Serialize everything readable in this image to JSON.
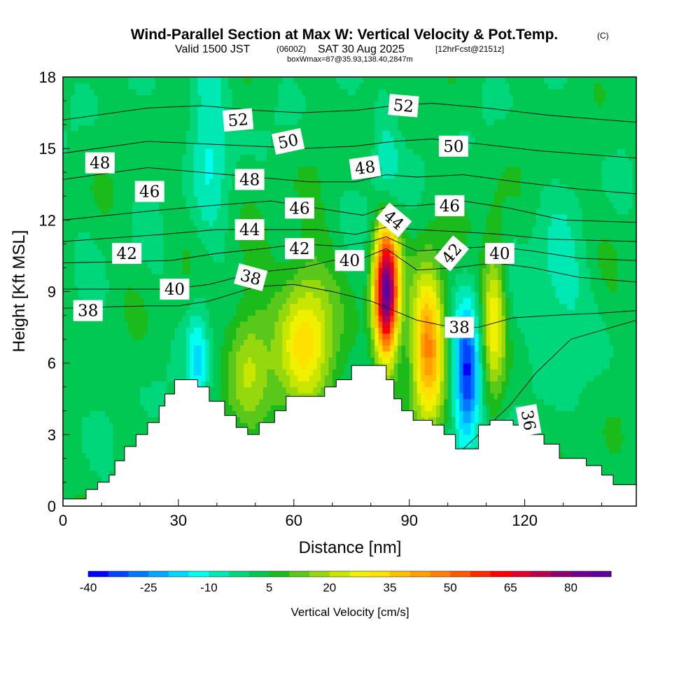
{
  "title": {
    "main": "Wind-Parallel Section at Max W: Vertical Velocity & Pot.Temp.",
    "copyright": "(C)",
    "valid_prefix": "Valid 1500 JST",
    "valid_zulu": "(0600Z)",
    "valid_date": "SAT 30 Aug 2025",
    "forecast": "[12hrFcst@2151z]",
    "boxw": "boxWmax=87@35.93,138.40,2847m"
  },
  "chart_data": {
    "type": "heatmap",
    "title": "Wind-Parallel Section at Max W: Vertical Velocity & Pot.Temp.",
    "xlabel": "Distance [nm]",
    "ylabel": "Height [Kft MSL]",
    "xlim": [
      0,
      149
    ],
    "ylim": [
      0,
      18
    ],
    "x_ticks": [
      0,
      30,
      60,
      90,
      120
    ],
    "x_tick_labels": [
      "0",
      "30",
      "60",
      "90",
      "120"
    ],
    "y_ticks": [
      0,
      3,
      6,
      9,
      12,
      15,
      18
    ],
    "y_tick_labels": [
      "0",
      "3",
      "6",
      "9",
      "12",
      "15",
      "18"
    ],
    "colorbar": {
      "label": "Vertical Velocity [cm/s]",
      "range": [
        -40,
        90
      ],
      "step": 5,
      "tick_values": [
        -40,
        -25,
        -10,
        5,
        20,
        35,
        50,
        65,
        80
      ],
      "tick_labels": [
        "-40",
        "-25",
        "-10",
        "5",
        "20",
        "35",
        "50",
        "65",
        "80"
      ],
      "colors": [
        "#0000ff",
        "#0044ff",
        "#0078ff",
        "#00a8ff",
        "#00d8ff",
        "#00ffee",
        "#00e8b4",
        "#00d77a",
        "#00c853",
        "#1cbb1c",
        "#5ac81a",
        "#96d80e",
        "#c8e600",
        "#f0f000",
        "#ffe100",
        "#ffc000",
        "#ffa000",
        "#ff8000",
        "#ff5a00",
        "#ff2a00",
        "#ff0000",
        "#e0002a",
        "#b80050",
        "#900070",
        "#700090",
        "#60009f"
      ]
    },
    "terrain": [
      [
        0,
        0.3
      ],
      [
        6,
        0.3
      ],
      [
        6,
        0.7
      ],
      [
        9,
        0.7
      ],
      [
        9,
        1.0
      ],
      [
        12,
        1.0
      ],
      [
        12,
        1.3
      ],
      [
        13.5,
        1.3
      ],
      [
        13.5,
        1.9
      ],
      [
        16,
        1.9
      ],
      [
        16,
        2.5
      ],
      [
        19,
        2.5
      ],
      [
        19,
        3.0
      ],
      [
        22,
        3.0
      ],
      [
        22,
        3.5
      ],
      [
        25,
        3.5
      ],
      [
        25,
        4.2
      ],
      [
        26.5,
        4.2
      ],
      [
        26.5,
        4.7
      ],
      [
        29,
        4.7
      ],
      [
        29,
        5.3
      ],
      [
        35,
        5.3
      ],
      [
        35,
        5.0
      ],
      [
        38,
        5.0
      ],
      [
        38,
        4.4
      ],
      [
        42,
        4.4
      ],
      [
        42,
        3.8
      ],
      [
        45,
        3.8
      ],
      [
        45,
        3.3
      ],
      [
        48,
        3.3
      ],
      [
        48,
        3.0
      ],
      [
        51,
        3.0
      ],
      [
        51,
        3.5
      ],
      [
        55,
        3.5
      ],
      [
        55,
        4.0
      ],
      [
        58,
        4.0
      ],
      [
        58,
        4.6
      ],
      [
        68,
        4.6
      ],
      [
        68,
        5.0
      ],
      [
        71,
        5.0
      ],
      [
        71,
        5.3
      ],
      [
        75,
        5.3
      ],
      [
        75,
        5.9
      ],
      [
        84,
        5.9
      ],
      [
        84,
        5.3
      ],
      [
        86,
        5.3
      ],
      [
        86,
        4.5
      ],
      [
        88,
        4.5
      ],
      [
        88,
        4.0
      ],
      [
        91,
        4.0
      ],
      [
        91,
        3.6
      ],
      [
        96,
        3.6
      ],
      [
        96,
        3.4
      ],
      [
        99,
        3.4
      ],
      [
        99,
        3.0
      ],
      [
        102,
        3.0
      ],
      [
        102,
        2.4
      ],
      [
        108,
        2.4
      ],
      [
        108,
        3.4
      ],
      [
        111,
        3.4
      ],
      [
        111,
        3.6
      ],
      [
        117,
        3.6
      ],
      [
        117,
        3.4
      ],
      [
        121,
        3.4
      ],
      [
        121,
        3.0
      ],
      [
        125,
        3.0
      ],
      [
        125,
        2.6
      ],
      [
        129,
        2.6
      ],
      [
        129,
        2.0
      ],
      [
        136,
        2.0
      ],
      [
        136,
        1.7
      ],
      [
        140,
        1.7
      ],
      [
        140,
        1.3
      ],
      [
        143,
        1.3
      ],
      [
        143,
        0.9
      ],
      [
        149,
        0.9
      ],
      [
        149,
        0
      ]
    ],
    "vertical_velocity_features": [
      {
        "x": 84,
        "y": 9.0,
        "peak": 87,
        "sx": 2.2,
        "sy": 2.0
      },
      {
        "x": 95,
        "y": 6.8,
        "peak": 45,
        "sx": 3.0,
        "sy": 2.3
      },
      {
        "x": 105,
        "y": 5.6,
        "peak": -40,
        "sx": 2.5,
        "sy": 2.0
      },
      {
        "x": 112,
        "y": 8.0,
        "peak": 27,
        "sx": 2.2,
        "sy": 2.3
      },
      {
        "x": 63,
        "y": 7.0,
        "peak": 30,
        "sx": 5.0,
        "sy": 2.3
      },
      {
        "x": 35,
        "y": 6.0,
        "peak": -17,
        "sx": 2.0,
        "sy": 1.8
      },
      {
        "x": 48,
        "y": 6.0,
        "peak": 18,
        "sx": 4.0,
        "sy": 2.0
      },
      {
        "x": 38,
        "y": 16.5,
        "peak": -12,
        "sx": 3.5,
        "sy": 3.5
      },
      {
        "x": 84,
        "y": 14.0,
        "peak": -12,
        "sx": 2.5,
        "sy": 2.5
      },
      {
        "x": 128,
        "y": 9.0,
        "peak": -10,
        "sx": 6.0,
        "sy": 2.0
      }
    ],
    "theta_contours": [
      {
        "label": "36",
        "points": [
          [
            104,
            2.4
          ],
          [
            116,
            4.2
          ],
          [
            123,
            5.6
          ],
          [
            132,
            7.0
          ],
          [
            149,
            7.8
          ]
        ]
      },
      {
        "label": "38",
        "points": [
          [
            0,
            8.3
          ],
          [
            22,
            8.4
          ],
          [
            30,
            8.4
          ],
          [
            38,
            8.6
          ],
          [
            50,
            9.2
          ],
          [
            60,
            9.3
          ],
          [
            70,
            9.0
          ],
          [
            80,
            8.6
          ],
          [
            86,
            8.2
          ],
          [
            92,
            7.8
          ],
          [
            101,
            7.5
          ],
          [
            108,
            7.5
          ],
          [
            117,
            7.9
          ],
          [
            127,
            8.0
          ],
          [
            140,
            8.1
          ],
          [
            149,
            8.2
          ]
        ]
      },
      {
        "label": "40",
        "points": [
          [
            0,
            9.1
          ],
          [
            28,
            9.1
          ],
          [
            38,
            9.3
          ],
          [
            50,
            9.8
          ],
          [
            62,
            10.0
          ],
          [
            70,
            10.3
          ],
          [
            78,
            10.4
          ],
          [
            84,
            10.8
          ],
          [
            92,
            9.9
          ],
          [
            102,
            10.0
          ],
          [
            112,
            10.2
          ],
          [
            122,
            10.0
          ],
          [
            134,
            9.6
          ],
          [
            149,
            9.4
          ]
        ]
      },
      {
        "label": "42",
        "points": [
          [
            0,
            10.2
          ],
          [
            28,
            10.3
          ],
          [
            40,
            10.6
          ],
          [
            52,
            10.8
          ],
          [
            62,
            11.0
          ],
          [
            72,
            10.9
          ],
          [
            80,
            11.1
          ],
          [
            84,
            11.3
          ],
          [
            92,
            10.7
          ],
          [
            102,
            10.8
          ],
          [
            112,
            10.9
          ],
          [
            122,
            10.7
          ],
          [
            134,
            10.4
          ],
          [
            149,
            10.3
          ]
        ]
      },
      {
        "label": "44",
        "points": [
          [
            0,
            11.1
          ],
          [
            26,
            11.4
          ],
          [
            40,
            11.6
          ],
          [
            54,
            11.6
          ],
          [
            66,
            11.6
          ],
          [
            76,
            11.4
          ],
          [
            84,
            11.7
          ],
          [
            92,
            11.6
          ],
          [
            104,
            11.5
          ],
          [
            114,
            11.4
          ],
          [
            126,
            11.2
          ],
          [
            149,
            11.1
          ]
        ]
      },
      {
        "label": "46",
        "points": [
          [
            0,
            12.0
          ],
          [
            24,
            12.4
          ],
          [
            38,
            12.6
          ],
          [
            54,
            12.8
          ],
          [
            66,
            12.5
          ],
          [
            78,
            12.2
          ],
          [
            85,
            12.6
          ],
          [
            92,
            12.6
          ],
          [
            104,
            12.8
          ],
          [
            116,
            12.5
          ],
          [
            130,
            12.0
          ],
          [
            149,
            11.9
          ]
        ]
      },
      {
        "label": "48",
        "points": [
          [
            0,
            13.7
          ],
          [
            22,
            14.2
          ],
          [
            36,
            14.0
          ],
          [
            50,
            13.8
          ],
          [
            64,
            13.6
          ],
          [
            76,
            13.6
          ],
          [
            84,
            13.9
          ],
          [
            92,
            13.8
          ],
          [
            104,
            13.9
          ],
          [
            118,
            13.6
          ],
          [
            134,
            13.3
          ],
          [
            149,
            13.1
          ]
        ]
      },
      {
        "label": "50",
        "points": [
          [
            0,
            14.8
          ],
          [
            22,
            15.3
          ],
          [
            36,
            15.2
          ],
          [
            50,
            15.1
          ],
          [
            62,
            15.0
          ],
          [
            76,
            15.1
          ],
          [
            86,
            15.3
          ],
          [
            96,
            15.4
          ],
          [
            108,
            15.2
          ],
          [
            124,
            14.9
          ],
          [
            149,
            14.6
          ]
        ]
      },
      {
        "label": "52",
        "points": [
          [
            0,
            16.2
          ],
          [
            22,
            16.7
          ],
          [
            36,
            16.8
          ],
          [
            50,
            16.6
          ],
          [
            62,
            16.5
          ],
          [
            76,
            16.6
          ],
          [
            86,
            16.8
          ],
          [
            96,
            16.9
          ],
          [
            110,
            16.7
          ],
          [
            126,
            16.4
          ],
          [
            149,
            16.1
          ]
        ]
      }
    ],
    "contour_labels": [
      {
        "text": "52",
        "x": 45.5,
        "y": 16.2,
        "rot": -5
      },
      {
        "text": "52",
        "x": 88.5,
        "y": 16.8,
        "rot": 5
      },
      {
        "text": "50",
        "x": 58.5,
        "y": 15.3,
        "rot": -12
      },
      {
        "text": "50",
        "x": 101.5,
        "y": 15.1,
        "rot": 0
      },
      {
        "text": "48",
        "x": 9.6,
        "y": 14.4,
        "rot": 0
      },
      {
        "text": "48",
        "x": 48.5,
        "y": 13.7,
        "rot": 0
      },
      {
        "text": "48",
        "x": 78.5,
        "y": 14.2,
        "rot": -8
      },
      {
        "text": "46",
        "x": 22.5,
        "y": 13.2,
        "rot": 0
      },
      {
        "text": "46",
        "x": 61.5,
        "y": 12.5,
        "rot": 0
      },
      {
        "text": "46",
        "x": 100.5,
        "y": 12.6,
        "rot": 0
      },
      {
        "text": "44",
        "x": 48.5,
        "y": 11.6,
        "rot": 0
      },
      {
        "text": "44",
        "x": 86,
        "y": 12.0,
        "rot": 40
      },
      {
        "text": "42",
        "x": 16.6,
        "y": 10.6,
        "rot": 0
      },
      {
        "text": "42",
        "x": 61.5,
        "y": 10.8,
        "rot": 0
      },
      {
        "text": "42",
        "x": 101,
        "y": 10.6,
        "rot": -50
      },
      {
        "text": "40",
        "x": 29,
        "y": 9.1,
        "rot": 0
      },
      {
        "text": "40",
        "x": 74.5,
        "y": 10.3,
        "rot": 0
      },
      {
        "text": "40",
        "x": 113.5,
        "y": 10.6,
        "rot": 0
      },
      {
        "text": "38",
        "x": 48.8,
        "y": 9.6,
        "rot": 15
      },
      {
        "text": "38",
        "x": 6.5,
        "y": 8.2,
        "rot": 0
      },
      {
        "text": "38",
        "x": 103,
        "y": 7.5,
        "rot": 0
      },
      {
        "text": "36",
        "x": 121,
        "y": 3.6,
        "rot": 80
      }
    ]
  }
}
